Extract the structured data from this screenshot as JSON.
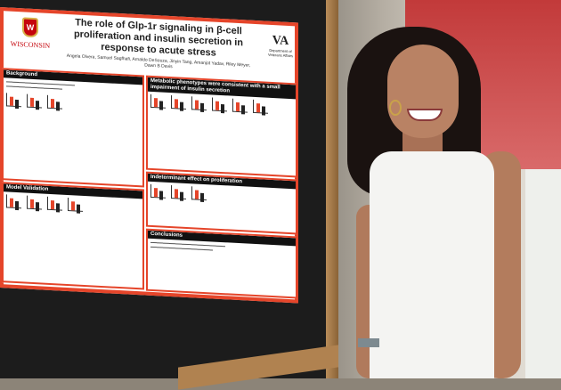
{
  "scene": {
    "description_colors": {
      "poster_border": "#e5452a",
      "wall_red": "#c23a3a",
      "dress": "#f4f4f2"
    }
  },
  "poster": {
    "logo_text": "WISCONSIN",
    "title": "The role of Glp-1r signaling in β-cell proliferation and insulin secretion in response to acute stress",
    "authors": "Angela Olvera, Samuel Sagfhafi, Arnaldo DeSouza, Jinyin Tang, Amanjot Yadav, Riley Meyer, Dawn B Davis",
    "va_label": "Department of Veterans Affairs",
    "sections": {
      "background": "Background",
      "metabolic": "Metabolic phenotypes were consistent with a small impairment of insulin secretion",
      "model_validation": "Model Validation",
      "proliferation": "Indeterminant effect on proliferation",
      "conclusions": "Conclusions"
    }
  }
}
